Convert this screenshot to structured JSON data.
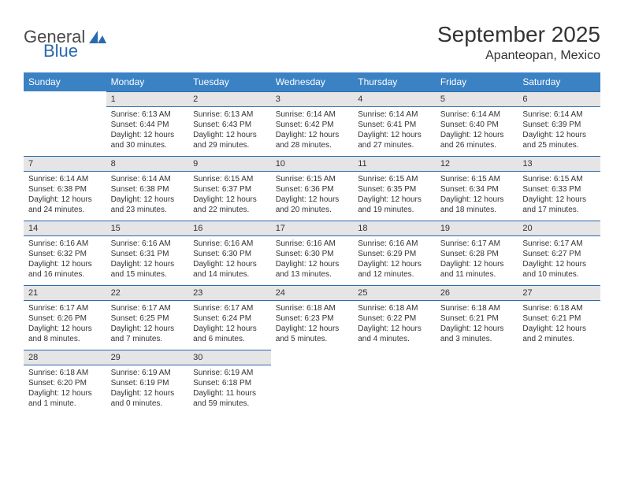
{
  "logo": {
    "general": "General",
    "blue": "Blue"
  },
  "header": {
    "month_title": "September 2025",
    "location": "Apanteopan, Mexico"
  },
  "colors": {
    "header_bg": "#3b82c4",
    "header_text": "#ffffff",
    "daynum_bg": "#e5e5e5",
    "daynum_border": "#2a6ab0",
    "text": "#333333",
    "logo_blue": "#2a6ab0",
    "logo_gray": "#4a4a4a"
  },
  "day_headers": [
    "Sunday",
    "Monday",
    "Tuesday",
    "Wednesday",
    "Thursday",
    "Friday",
    "Saturday"
  ],
  "weeks": [
    [
      {
        "n": "",
        "sr": "",
        "ss": "",
        "dl": ""
      },
      {
        "n": "1",
        "sr": "Sunrise: 6:13 AM",
        "ss": "Sunset: 6:44 PM",
        "dl": "Daylight: 12 hours and 30 minutes."
      },
      {
        "n": "2",
        "sr": "Sunrise: 6:13 AM",
        "ss": "Sunset: 6:43 PM",
        "dl": "Daylight: 12 hours and 29 minutes."
      },
      {
        "n": "3",
        "sr": "Sunrise: 6:14 AM",
        "ss": "Sunset: 6:42 PM",
        "dl": "Daylight: 12 hours and 28 minutes."
      },
      {
        "n": "4",
        "sr": "Sunrise: 6:14 AM",
        "ss": "Sunset: 6:41 PM",
        "dl": "Daylight: 12 hours and 27 minutes."
      },
      {
        "n": "5",
        "sr": "Sunrise: 6:14 AM",
        "ss": "Sunset: 6:40 PM",
        "dl": "Daylight: 12 hours and 26 minutes."
      },
      {
        "n": "6",
        "sr": "Sunrise: 6:14 AM",
        "ss": "Sunset: 6:39 PM",
        "dl": "Daylight: 12 hours and 25 minutes."
      }
    ],
    [
      {
        "n": "7",
        "sr": "Sunrise: 6:14 AM",
        "ss": "Sunset: 6:38 PM",
        "dl": "Daylight: 12 hours and 24 minutes."
      },
      {
        "n": "8",
        "sr": "Sunrise: 6:14 AM",
        "ss": "Sunset: 6:38 PM",
        "dl": "Daylight: 12 hours and 23 minutes."
      },
      {
        "n": "9",
        "sr": "Sunrise: 6:15 AM",
        "ss": "Sunset: 6:37 PM",
        "dl": "Daylight: 12 hours and 22 minutes."
      },
      {
        "n": "10",
        "sr": "Sunrise: 6:15 AM",
        "ss": "Sunset: 6:36 PM",
        "dl": "Daylight: 12 hours and 20 minutes."
      },
      {
        "n": "11",
        "sr": "Sunrise: 6:15 AM",
        "ss": "Sunset: 6:35 PM",
        "dl": "Daylight: 12 hours and 19 minutes."
      },
      {
        "n": "12",
        "sr": "Sunrise: 6:15 AM",
        "ss": "Sunset: 6:34 PM",
        "dl": "Daylight: 12 hours and 18 minutes."
      },
      {
        "n": "13",
        "sr": "Sunrise: 6:15 AM",
        "ss": "Sunset: 6:33 PM",
        "dl": "Daylight: 12 hours and 17 minutes."
      }
    ],
    [
      {
        "n": "14",
        "sr": "Sunrise: 6:16 AM",
        "ss": "Sunset: 6:32 PM",
        "dl": "Daylight: 12 hours and 16 minutes."
      },
      {
        "n": "15",
        "sr": "Sunrise: 6:16 AM",
        "ss": "Sunset: 6:31 PM",
        "dl": "Daylight: 12 hours and 15 minutes."
      },
      {
        "n": "16",
        "sr": "Sunrise: 6:16 AM",
        "ss": "Sunset: 6:30 PM",
        "dl": "Daylight: 12 hours and 14 minutes."
      },
      {
        "n": "17",
        "sr": "Sunrise: 6:16 AM",
        "ss": "Sunset: 6:30 PM",
        "dl": "Daylight: 12 hours and 13 minutes."
      },
      {
        "n": "18",
        "sr": "Sunrise: 6:16 AM",
        "ss": "Sunset: 6:29 PM",
        "dl": "Daylight: 12 hours and 12 minutes."
      },
      {
        "n": "19",
        "sr": "Sunrise: 6:17 AM",
        "ss": "Sunset: 6:28 PM",
        "dl": "Daylight: 12 hours and 11 minutes."
      },
      {
        "n": "20",
        "sr": "Sunrise: 6:17 AM",
        "ss": "Sunset: 6:27 PM",
        "dl": "Daylight: 12 hours and 10 minutes."
      }
    ],
    [
      {
        "n": "21",
        "sr": "Sunrise: 6:17 AM",
        "ss": "Sunset: 6:26 PM",
        "dl": "Daylight: 12 hours and 8 minutes."
      },
      {
        "n": "22",
        "sr": "Sunrise: 6:17 AM",
        "ss": "Sunset: 6:25 PM",
        "dl": "Daylight: 12 hours and 7 minutes."
      },
      {
        "n": "23",
        "sr": "Sunrise: 6:17 AM",
        "ss": "Sunset: 6:24 PM",
        "dl": "Daylight: 12 hours and 6 minutes."
      },
      {
        "n": "24",
        "sr": "Sunrise: 6:18 AM",
        "ss": "Sunset: 6:23 PM",
        "dl": "Daylight: 12 hours and 5 minutes."
      },
      {
        "n": "25",
        "sr": "Sunrise: 6:18 AM",
        "ss": "Sunset: 6:22 PM",
        "dl": "Daylight: 12 hours and 4 minutes."
      },
      {
        "n": "26",
        "sr": "Sunrise: 6:18 AM",
        "ss": "Sunset: 6:21 PM",
        "dl": "Daylight: 12 hours and 3 minutes."
      },
      {
        "n": "27",
        "sr": "Sunrise: 6:18 AM",
        "ss": "Sunset: 6:21 PM",
        "dl": "Daylight: 12 hours and 2 minutes."
      }
    ],
    [
      {
        "n": "28",
        "sr": "Sunrise: 6:18 AM",
        "ss": "Sunset: 6:20 PM",
        "dl": "Daylight: 12 hours and 1 minute."
      },
      {
        "n": "29",
        "sr": "Sunrise: 6:19 AM",
        "ss": "Sunset: 6:19 PM",
        "dl": "Daylight: 12 hours and 0 minutes."
      },
      {
        "n": "30",
        "sr": "Sunrise: 6:19 AM",
        "ss": "Sunset: 6:18 PM",
        "dl": "Daylight: 11 hours and 59 minutes."
      },
      {
        "n": "",
        "sr": "",
        "ss": "",
        "dl": ""
      },
      {
        "n": "",
        "sr": "",
        "ss": "",
        "dl": ""
      },
      {
        "n": "",
        "sr": "",
        "ss": "",
        "dl": ""
      },
      {
        "n": "",
        "sr": "",
        "ss": "",
        "dl": ""
      }
    ]
  ]
}
